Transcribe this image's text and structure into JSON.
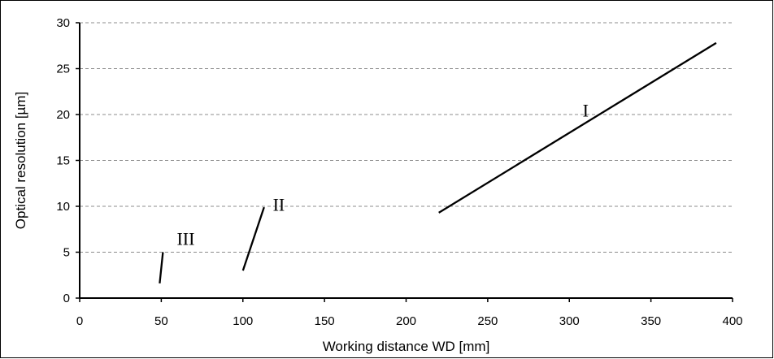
{
  "chart_data": {
    "type": "line",
    "title": "",
    "xlabel": "Working distance WD [mm]",
    "ylabel": "Optical resolution [µm]",
    "xlim": [
      0,
      400
    ],
    "ylim": [
      0,
      30
    ],
    "x_ticks": [
      "0",
      "50",
      "100",
      "150",
      "200",
      "250",
      "300",
      "350",
      "400"
    ],
    "y_ticks": [
      "0",
      "5",
      "10",
      "15",
      "20",
      "25",
      "30"
    ],
    "grid": "horizontal-dashed",
    "legend": "none",
    "series": [
      {
        "name": "III",
        "color": "#000000",
        "points": [
          [
            49,
            1.6
          ],
          [
            51,
            5.0
          ]
        ],
        "label_at": [
          65,
          5.8
        ]
      },
      {
        "name": "II",
        "color": "#000000",
        "points": [
          [
            100,
            3.0
          ],
          [
            113,
            9.9
          ]
        ],
        "label_at": [
          122,
          9.5
        ]
      },
      {
        "name": "I",
        "color": "#000000",
        "points": [
          [
            220,
            9.3
          ],
          [
            390,
            27.8
          ]
        ],
        "label_at": [
          310,
          19.8
        ]
      }
    ]
  }
}
